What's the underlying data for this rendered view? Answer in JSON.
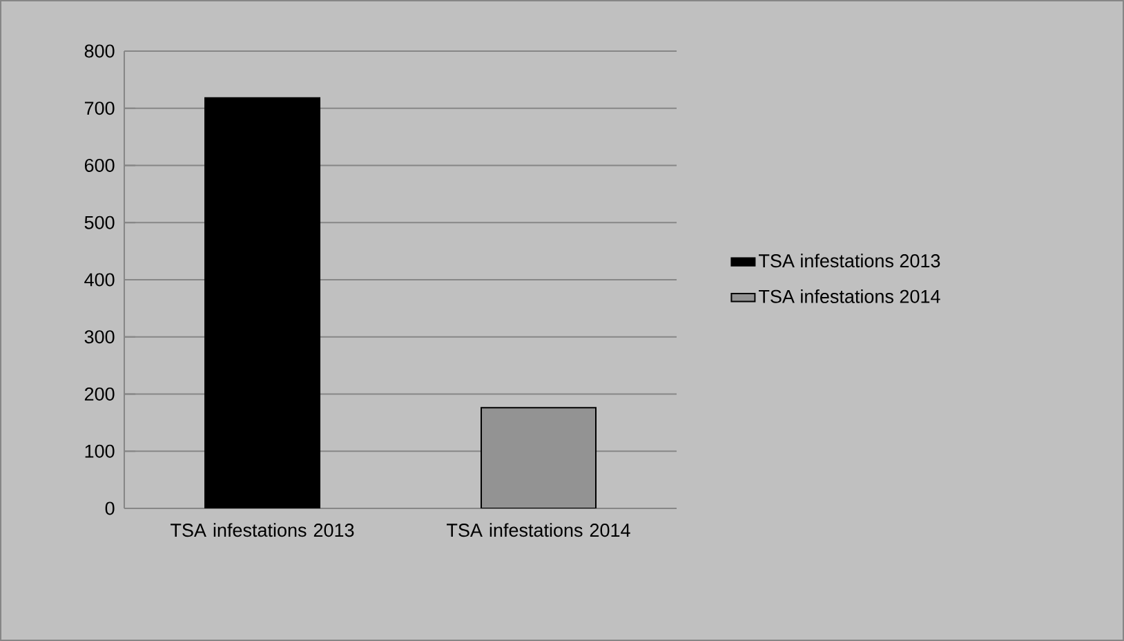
{
  "chart_data": {
    "type": "bar",
    "categories": [
      "TSA infestations 2013",
      "TSA infestations 2014"
    ],
    "series": [
      {
        "name": "TSA infestations 2013",
        "color": "#000000",
        "values": [
          718,
          null
        ]
      },
      {
        "name": "TSA infestations 2014",
        "color": "#939393",
        "values": [
          null,
          176
        ]
      }
    ],
    "ylim": [
      0,
      800
    ],
    "yticks": [
      0,
      100,
      200,
      300,
      400,
      500,
      600,
      700,
      800
    ],
    "grid": "y",
    "legend": "right"
  }
}
